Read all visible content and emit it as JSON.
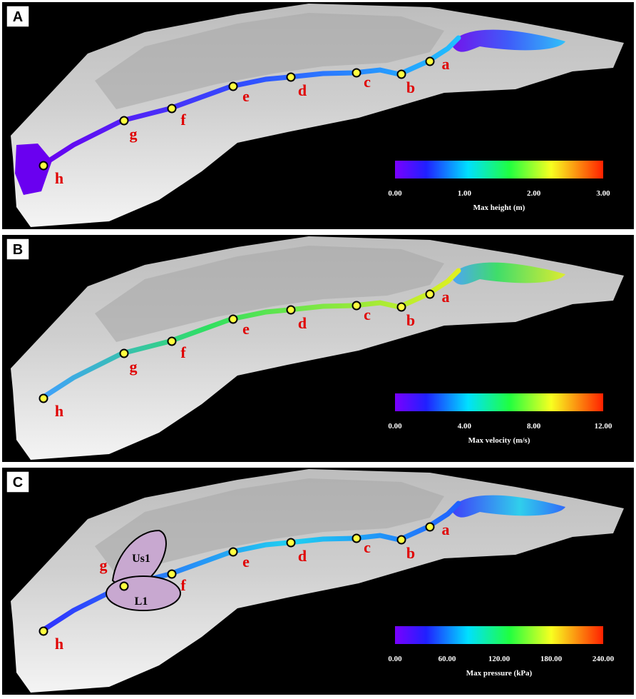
{
  "panels": [
    {
      "letter": "A",
      "points": [
        "a",
        "b",
        "c",
        "d",
        "e",
        "f",
        "g",
        "h"
      ],
      "colorbar": {
        "title": "Max height (m)",
        "lim": [
          0,
          3
        ],
        "ticks": [
          {
            "value": 0,
            "label": "0.00"
          },
          {
            "value": 1,
            "label": "1.00"
          },
          {
            "value": 2,
            "label": "2.00"
          },
          {
            "value": 3,
            "label": "3.00"
          }
        ]
      }
    },
    {
      "letter": "B",
      "points": [
        "a",
        "b",
        "c",
        "d",
        "e",
        "f",
        "g",
        "h"
      ],
      "colorbar": {
        "title": "Max velocity (m/s)",
        "lim": [
          0,
          12
        ],
        "ticks": [
          {
            "value": 0,
            "label": "0.00"
          },
          {
            "value": 4,
            "label": "4.00"
          },
          {
            "value": 8,
            "label": "8.00"
          },
          {
            "value": 12,
            "label": "12.00"
          }
        ]
      }
    },
    {
      "letter": "C",
      "points": [
        "a",
        "b",
        "c",
        "d",
        "e",
        "f",
        "g",
        "h"
      ],
      "colorbar": {
        "title": "Max pressure (kPa)",
        "lim": [
          0,
          240
        ],
        "ticks": [
          {
            "value": 0,
            "label": "0.00"
          },
          {
            "value": 60,
            "label": "60.00"
          },
          {
            "value": 120,
            "label": "120.00"
          },
          {
            "value": 180,
            "label": "180.00"
          },
          {
            "value": 240,
            "label": "240.00"
          }
        ]
      },
      "zones": [
        "Us1",
        "L1"
      ]
    }
  ]
}
